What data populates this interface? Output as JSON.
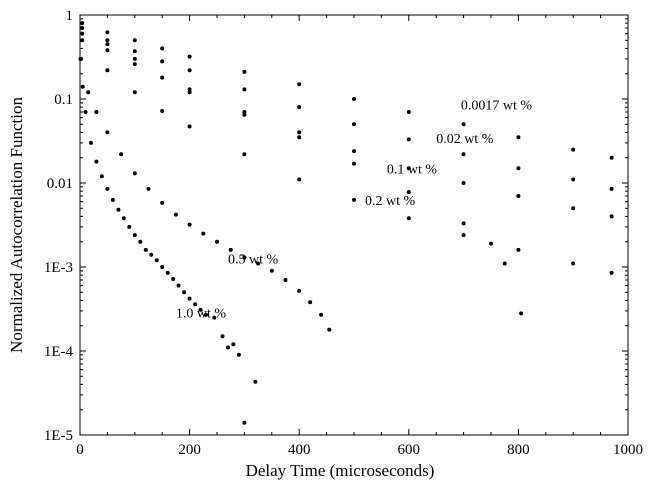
{
  "chart_data": {
    "type": "scatter",
    "title": "",
    "xlabel": "Delay Time (microseconds)",
    "ylabel": "Normalized Autocorrelation Function",
    "xlim": [
      0,
      1000
    ],
    "ylim": [
      1e-05,
      1
    ],
    "y_scale": "log",
    "grid": false,
    "legend": "none",
    "x_ticks": [
      0,
      200,
      400,
      600,
      800,
      1000
    ],
    "x_tick_labels": [
      "0",
      "200",
      "400",
      "600",
      "800",
      "1000"
    ],
    "y_ticks": [
      1,
      0.1,
      0.01,
      0.001,
      0.0001,
      1e-05
    ],
    "y_tick_labels": [
      "1",
      "0.1",
      "0.01",
      "1E-3",
      "1E-4",
      "1E-5"
    ],
    "marker_color": "#000000",
    "series": [
      {
        "name": "0.0017 wt %",
        "x": [
          4,
          50,
          100,
          150,
          200,
          300,
          400,
          500,
          600,
          700,
          800,
          900,
          970
        ],
        "y": [
          0.8,
          0.62,
          0.5,
          0.4,
          0.32,
          0.21,
          0.15,
          0.1,
          0.07,
          0.05,
          0.035,
          0.025,
          0.02
        ]
      },
      {
        "name": "0.02 wt %",
        "x": [
          4,
          50,
          100,
          150,
          200,
          300,
          400,
          500,
          600,
          700,
          800,
          900,
          970
        ],
        "y": [
          0.7,
          0.5,
          0.37,
          0.28,
          0.22,
          0.13,
          0.08,
          0.05,
          0.033,
          0.022,
          0.015,
          0.011,
          0.0085
        ]
      },
      {
        "name": "0.1 wt %",
        "x": [
          4,
          50,
          100,
          150,
          200,
          300,
          400,
          500,
          600,
          700,
          800,
          900,
          970
        ],
        "y": [
          0.6,
          0.38,
          0.26,
          0.18,
          0.13,
          0.07,
          0.04,
          0.024,
          0.015,
          0.01,
          0.007,
          0.005,
          0.004
        ]
      },
      {
        "name": "0.2 wt %",
        "x": [
          4,
          50,
          100,
          150,
          200,
          300,
          400,
          500,
          600,
          700,
          800,
          900,
          970
        ],
        "y": [
          0.5,
          0.22,
          0.12,
          0.072,
          0.047,
          0.022,
          0.011,
          0.0063,
          0.0038,
          0.0024,
          0.0016,
          0.0011,
          0.00085
        ]
      },
      {
        "name": "0.2 wt % (tail)",
        "x": [
          50,
          100,
          200,
          300,
          400,
          500,
          600,
          700,
          750,
          775,
          805
        ],
        "y": [
          0.45,
          0.3,
          0.12,
          0.065,
          0.035,
          0.017,
          0.0078,
          0.0033,
          0.0019,
          0.0011,
          0.00028
        ]
      },
      {
        "name": "0.5 wt %",
        "x": [
          2,
          15,
          30,
          50,
          75,
          100,
          125,
          150,
          175,
          200,
          225,
          250,
          275,
          300,
          325,
          350,
          375,
          400,
          420,
          440,
          455
        ],
        "y": [
          0.3,
          0.12,
          0.07,
          0.04,
          0.022,
          0.013,
          0.0085,
          0.0058,
          0.0042,
          0.0032,
          0.0025,
          0.002,
          0.0016,
          0.0013,
          0.0011,
          0.0009,
          0.0007,
          0.00052,
          0.00038,
          0.00027,
          0.00018
        ]
      },
      {
        "name": "1.0 wt %",
        "x": [
          1,
          5,
          10,
          20,
          30,
          40,
          50,
          60,
          70,
          80,
          90,
          100,
          110,
          120,
          130,
          140,
          150,
          160,
          170,
          180,
          190,
          200,
          210,
          220,
          230,
          245,
          260,
          270,
          280,
          290,
          300,
          320
        ],
        "y": [
          0.3,
          0.14,
          0.07,
          0.03,
          0.018,
          0.012,
          0.0085,
          0.0063,
          0.0048,
          0.0038,
          0.003,
          0.0024,
          0.002,
          0.0016,
          0.0014,
          0.0012,
          0.001,
          0.00085,
          0.00072,
          0.0006,
          0.0005,
          0.00042,
          0.00036,
          0.00031,
          0.00027,
          0.00025,
          0.00015,
          0.00011,
          0.00012,
          9e-05,
          1.4e-05,
          4.3e-05
        ]
      }
    ],
    "annotations": [
      {
        "text": "0.0017 wt %",
        "x": 695,
        "y": 0.075
      },
      {
        "text": "0.02 wt %",
        "x": 650,
        "y": 0.03
      },
      {
        "text": "0.1 wt %",
        "x": 560,
        "y": 0.013
      },
      {
        "text": "0.2 wt %",
        "x": 520,
        "y": 0.0055
      },
      {
        "text": "0.5 wt %",
        "x": 270,
        "y": 0.0011
      },
      {
        "text": "1.0 wt %",
        "x": 175,
        "y": 0.00025
      }
    ]
  }
}
